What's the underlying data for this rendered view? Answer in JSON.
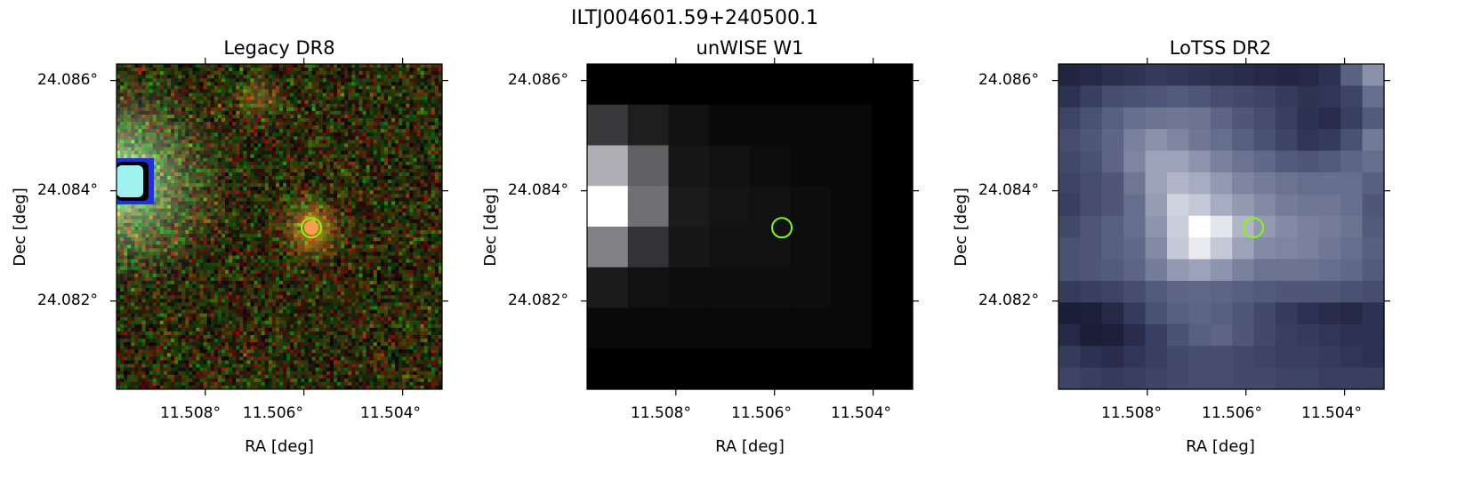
{
  "figure": {
    "suptitle": "ILTJ004601.59+240500.1",
    "colors": {
      "marker_circle": "#7fff00",
      "source_dot": "#f3a050",
      "lotss_base": "#3c3c5a",
      "frame": "#000000"
    }
  },
  "chart_data": [
    {
      "type": "heatmap",
      "title": "Legacy DR8",
      "xlabel": "RA [deg]",
      "ylabel": "Dec [deg]",
      "xticks": [
        "11.508°",
        "11.506°",
        "11.504°"
      ],
      "yticks": [
        "24.086°",
        "24.084°",
        "24.082°"
      ],
      "xlim": [
        11.5098,
        11.5032
      ],
      "ylim": [
        24.0804,
        24.0863
      ],
      "image": "Legacy survey colour composite; bright saturated galaxy at left edge, orange-yellow source at circle",
      "marker": {
        "ra": 11.50585,
        "dec": 24.08333,
        "shape": "circle"
      }
    },
    {
      "type": "heatmap",
      "title": "unWISE W1",
      "xlabel": "RA [deg]",
      "ylabel": "Dec [deg]",
      "xticks": [
        "11.508°",
        "11.506°",
        "11.504°"
      ],
      "yticks": [
        "24.086°",
        "24.084°",
        "24.082°"
      ],
      "xlim": [
        11.5098,
        11.5032
      ],
      "ylim": [
        24.0804,
        24.0863
      ],
      "grid_values": [
        [
          0.0,
          0.0,
          0.0,
          0.0,
          0.0,
          0.0,
          0.0,
          0.0
        ],
        [
          0.17,
          0.08,
          0.04,
          0.02,
          0.02,
          0.02,
          0.02,
          0.0
        ],
        [
          0.64,
          0.32,
          0.06,
          0.04,
          0.03,
          0.02,
          0.02,
          0.0
        ],
        [
          1.0,
          0.38,
          0.07,
          0.05,
          0.04,
          0.03,
          0.02,
          0.0
        ],
        [
          0.45,
          0.15,
          0.06,
          0.04,
          0.04,
          0.03,
          0.02,
          0.0
        ],
        [
          0.07,
          0.04,
          0.03,
          0.03,
          0.03,
          0.03,
          0.02,
          0.0
        ],
        [
          0.02,
          0.02,
          0.02,
          0.02,
          0.02,
          0.02,
          0.02,
          0.0
        ],
        [
          0.0,
          0.0,
          0.0,
          0.0,
          0.0,
          0.0,
          0.0,
          0.0
        ]
      ],
      "marker": {
        "ra": 11.50585,
        "dec": 24.08333,
        "shape": "circle"
      }
    },
    {
      "type": "heatmap",
      "title": "LoTSS DR2",
      "xlabel": "RA [deg]",
      "ylabel": "Dec [deg]",
      "xticks": [
        "11.508°",
        "11.506°",
        "11.504°"
      ],
      "yticks": [
        "24.086°",
        "24.084°",
        "24.082°"
      ],
      "xlim": [
        11.5098,
        11.5032
      ],
      "ylim": [
        24.0804,
        24.0863
      ],
      "grid_values": [
        [
          0.08,
          0.1,
          0.13,
          0.15,
          0.17,
          0.16,
          0.15,
          0.13,
          0.12,
          0.1,
          0.09,
          0.1,
          0.14,
          0.35,
          0.55
        ],
        [
          0.14,
          0.2,
          0.26,
          0.28,
          0.3,
          0.32,
          0.3,
          0.26,
          0.24,
          0.22,
          0.18,
          0.15,
          0.16,
          0.22,
          0.4
        ],
        [
          0.22,
          0.28,
          0.34,
          0.4,
          0.42,
          0.44,
          0.42,
          0.36,
          0.3,
          0.26,
          0.2,
          0.14,
          0.12,
          0.2,
          0.32
        ],
        [
          0.26,
          0.3,
          0.36,
          0.48,
          0.55,
          0.5,
          0.44,
          0.4,
          0.34,
          0.28,
          0.22,
          0.16,
          0.18,
          0.28,
          0.45
        ],
        [
          0.24,
          0.28,
          0.36,
          0.5,
          0.62,
          0.62,
          0.56,
          0.48,
          0.42,
          0.38,
          0.32,
          0.3,
          0.32,
          0.36,
          0.4
        ],
        [
          0.22,
          0.26,
          0.3,
          0.44,
          0.62,
          0.7,
          0.66,
          0.58,
          0.5,
          0.46,
          0.42,
          0.4,
          0.4,
          0.4,
          0.34
        ],
        [
          0.2,
          0.26,
          0.3,
          0.4,
          0.6,
          0.82,
          0.78,
          0.66,
          0.58,
          0.52,
          0.46,
          0.44,
          0.44,
          0.4,
          0.3
        ],
        [
          0.24,
          0.3,
          0.34,
          0.4,
          0.56,
          0.8,
          1.0,
          0.9,
          0.7,
          0.58,
          0.52,
          0.48,
          0.46,
          0.42,
          0.32
        ],
        [
          0.28,
          0.3,
          0.34,
          0.38,
          0.52,
          0.78,
          0.92,
          0.78,
          0.62,
          0.52,
          0.5,
          0.48,
          0.44,
          0.4,
          0.34
        ],
        [
          0.28,
          0.3,
          0.32,
          0.36,
          0.46,
          0.58,
          0.62,
          0.56,
          0.48,
          0.42,
          0.42,
          0.42,
          0.4,
          0.38,
          0.32
        ],
        [
          0.18,
          0.2,
          0.22,
          0.26,
          0.32,
          0.36,
          0.38,
          0.36,
          0.34,
          0.32,
          0.3,
          0.3,
          0.3,
          0.28,
          0.26
        ],
        [
          0.05,
          0.06,
          0.1,
          0.18,
          0.28,
          0.34,
          0.36,
          0.34,
          0.3,
          0.24,
          0.18,
          0.14,
          0.12,
          0.1,
          0.14
        ],
        [
          0.1,
          0.05,
          0.06,
          0.12,
          0.2,
          0.28,
          0.34,
          0.36,
          0.3,
          0.24,
          0.2,
          0.18,
          0.16,
          0.14,
          0.14
        ],
        [
          0.18,
          0.14,
          0.12,
          0.16,
          0.2,
          0.24,
          0.26,
          0.26,
          0.24,
          0.22,
          0.2,
          0.2,
          0.18,
          0.16,
          0.14
        ],
        [
          0.22,
          0.2,
          0.18,
          0.2,
          0.22,
          0.24,
          0.26,
          0.26,
          0.24,
          0.24,
          0.22,
          0.22,
          0.2,
          0.2,
          0.2
        ]
      ],
      "marker": {
        "ra": 11.50585,
        "dec": 24.08333,
        "shape": "circle"
      }
    }
  ]
}
